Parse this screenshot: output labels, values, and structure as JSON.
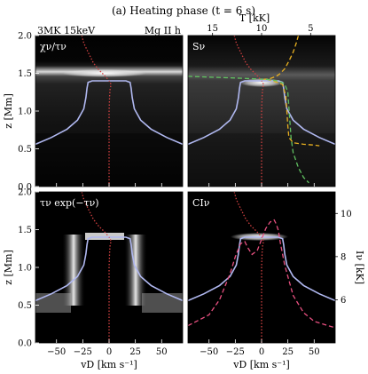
{
  "figure": {
    "title": "(a) Heating phase (t = 6 s)",
    "left_note": "3MK 15keV",
    "right_note": "Mg II h"
  },
  "chart_data": [
    {
      "type": "heatmap",
      "panel": "top-left",
      "label": "χν/τν",
      "xlabel": "",
      "ylabel": "z [Mm]",
      "xlim": [
        -70,
        70
      ],
      "ylim": [
        0.0,
        2.0
      ],
      "x_ticks": [
        -50,
        -25,
        0,
        25,
        50
      ],
      "y_ticks": [
        0.0,
        0.5,
        1.0,
        1.5,
        2.0
      ],
      "series": [
        {
          "name": "tau_unity",
          "color": "#b0b8f0",
          "x": [
            -70,
            -55,
            -40,
            -30,
            -24,
            -22,
            -21,
            -20,
            -16,
            0,
            16,
            20,
            21,
            22,
            24,
            30,
            40,
            55,
            70
          ],
          "y": [
            0.56,
            0.65,
            0.76,
            0.88,
            1.03,
            1.18,
            1.3,
            1.38,
            1.4,
            1.4,
            1.4,
            1.38,
            1.3,
            1.18,
            1.03,
            0.88,
            0.76,
            0.65,
            0.56
          ]
        },
        {
          "name": "velocity",
          "color": "#d04040",
          "style": "dotted",
          "x": [
            0,
            0,
            0,
            0.5,
            1,
            2,
            0
          ],
          "y": [
            0.0,
            0.5,
            1.0,
            1.2,
            1.3,
            1.35,
            1.4
          ]
        },
        {
          "name": "temperature",
          "color": "#d04040",
          "style": "dotted",
          "x": [
            -26,
            -24,
            -20,
            -15,
            -10,
            -5,
            -1
          ],
          "y": [
            2.0,
            1.9,
            1.78,
            1.64,
            1.55,
            1.48,
            1.42
          ]
        }
      ],
      "bright_band": {
        "z": [
          1.38,
          1.46
        ],
        "x": [
          -40,
          25
        ]
      }
    },
    {
      "type": "heatmap",
      "panel": "top-right",
      "label": "Sν",
      "xlabel": "",
      "ylabel": "",
      "top_axis_label": "T [kK]",
      "top_ticks": [
        15,
        10,
        5
      ],
      "xlim": [
        -70,
        70
      ],
      "ylim": [
        0.0,
        2.0
      ],
      "x_ticks": [
        -50,
        -25,
        0,
        25,
        50
      ],
      "series": [
        {
          "name": "tau_unity",
          "color": "#b0b8f0",
          "x": [
            -70,
            -55,
            -40,
            -30,
            -24,
            -22,
            -21,
            -20,
            -16,
            0,
            16,
            20,
            21,
            22,
            24,
            30,
            40,
            55,
            70
          ],
          "y": [
            0.56,
            0.65,
            0.76,
            0.88,
            1.03,
            1.18,
            1.3,
            1.38,
            1.4,
            1.4,
            1.4,
            1.38,
            1.3,
            1.18,
            1.03,
            0.88,
            0.76,
            0.65,
            0.56
          ]
        },
        {
          "name": "source_function_temperature",
          "color": "#e8b020",
          "style": "dashed",
          "x": [
            35,
            33,
            30,
            26,
            22,
            18,
            14,
            8,
            2
          ],
          "y": [
            2.0,
            1.9,
            1.78,
            1.66,
            1.56,
            1.5,
            1.46,
            1.43,
            1.42
          ]
        },
        {
          "name": "electron_temperature",
          "color": "#e8b020",
          "style": "dashed",
          "x": [
            5,
            10,
            15,
            20,
            23,
            24,
            25,
            26,
            30,
            40,
            50,
            55
          ],
          "y": [
            1.42,
            1.4,
            1.38,
            1.35,
            1.2,
            1.0,
            0.8,
            0.65,
            0.58,
            0.56,
            0.55,
            0.54
          ]
        },
        {
          "name": "ionization_temperature",
          "color": "#60c060",
          "style": "dashed",
          "x": [
            -70,
            -50,
            -30,
            -10,
            5,
            15,
            22,
            25,
            26,
            27,
            28,
            30,
            35,
            40,
            45
          ],
          "y": [
            1.46,
            1.45,
            1.44,
            1.43,
            1.42,
            1.4,
            1.36,
            1.25,
            1.05,
            0.85,
            0.65,
            0.45,
            0.25,
            0.12,
            0.05
          ]
        },
        {
          "name": "velocity",
          "color": "#d04040",
          "style": "dotted",
          "x": [
            0,
            0,
            0,
            0.5,
            1,
            2,
            0
          ],
          "y": [
            0.0,
            0.5,
            1.0,
            1.2,
            1.3,
            1.35,
            1.4
          ]
        },
        {
          "name": "temperature",
          "color": "#d04040",
          "style": "dotted",
          "x": [
            -26,
            -24,
            -20,
            -15,
            -10,
            -5,
            -1
          ],
          "y": [
            2.0,
            1.9,
            1.78,
            1.64,
            1.55,
            1.48,
            1.42
          ]
        }
      ],
      "bright_band": {
        "z": [
          1.38,
          1.44
        ],
        "x": [
          -10,
          20
        ]
      }
    },
    {
      "type": "heatmap",
      "panel": "bottom-left",
      "label": "τν exp(−τν)",
      "xlabel": "vD [km s⁻¹]",
      "ylabel": "z [Mm]",
      "xlim": [
        -70,
        70
      ],
      "ylim": [
        0.0,
        2.0
      ],
      "x_ticks": [
        -50,
        -25,
        0,
        25,
        50
      ],
      "y_ticks": [
        0.0,
        0.5,
        1.0,
        1.5,
        2.0
      ],
      "series": [
        {
          "name": "tau_unity",
          "color": "#b0b8f0",
          "x": [
            -70,
            -55,
            -40,
            -30,
            -24,
            -22,
            -21,
            -20,
            -16,
            0,
            16,
            20,
            21,
            22,
            24,
            30,
            40,
            55,
            70
          ],
          "y": [
            0.56,
            0.65,
            0.76,
            0.88,
            1.03,
            1.18,
            1.3,
            1.38,
            1.4,
            1.4,
            1.4,
            1.38,
            1.3,
            1.18,
            1.03,
            0.88,
            0.76,
            0.65,
            0.56
          ]
        },
        {
          "name": "velocity",
          "color": "#d04040",
          "style": "dotted",
          "x": [
            0,
            0,
            0,
            0.5,
            1,
            2,
            0
          ],
          "y": [
            0.0,
            0.5,
            1.0,
            1.2,
            1.3,
            1.35,
            1.4
          ]
        },
        {
          "name": "temperature",
          "color": "#d04040",
          "style": "dotted",
          "x": [
            -26,
            -24,
            -20,
            -15,
            -10,
            -5,
            -1
          ],
          "y": [
            2.0,
            1.9,
            1.78,
            1.64,
            1.55,
            1.48,
            1.42
          ]
        }
      ],
      "bright_band": {
        "z": [
          0.5,
          1.45
        ],
        "x": [
          -35,
          35
        ]
      }
    },
    {
      "type": "heatmap",
      "panel": "bottom-right",
      "label": "CIν",
      "xlabel": "vD [km s⁻¹]",
      "ylabel": "",
      "right_axis_label": "Iν [kK]",
      "right_ticks": [
        6,
        8,
        10
      ],
      "xlim": [
        -70,
        70
      ],
      "ylim": [
        0.0,
        2.0
      ],
      "x_ticks": [
        -50,
        -25,
        0,
        25,
        50
      ],
      "series": [
        {
          "name": "tau_unity",
          "color": "#b0b8f0",
          "x": [
            -70,
            -55,
            -40,
            -30,
            -24,
            -22,
            -21,
            -20,
            -16,
            0,
            16,
            20,
            21,
            22,
            24,
            30,
            40,
            55,
            70
          ],
          "y": [
            0.56,
            0.65,
            0.76,
            0.88,
            1.03,
            1.18,
            1.3,
            1.38,
            1.4,
            1.4,
            1.4,
            1.38,
            1.3,
            1.18,
            1.03,
            0.88,
            0.76,
            0.65,
            0.56
          ]
        },
        {
          "name": "intensity_profile",
          "color": "#e85080",
          "style": "dashed",
          "x": [
            -70,
            -50,
            -40,
            -30,
            -25,
            -20,
            -16,
            -13,
            -9,
            -4,
            0,
            4,
            8,
            12,
            14,
            16,
            18,
            22,
            30,
            40,
            50,
            70
          ],
          "x_units": "km/s",
          "I_kK": [
            4.8,
            5.3,
            6.0,
            7.2,
            8.0,
            8.6,
            8.7,
            8.4,
            8.1,
            8.3,
            8.8,
            9.3,
            9.6,
            9.7,
            9.5,
            9.2,
            8.6,
            7.6,
            6.2,
            5.4,
            5.0,
            4.7
          ]
        },
        {
          "name": "velocity",
          "color": "#d04040",
          "style": "dotted",
          "x": [
            0,
            0,
            0,
            0.5,
            1,
            2,
            0
          ],
          "y": [
            0.0,
            0.5,
            1.0,
            1.2,
            1.3,
            1.35,
            1.4
          ]
        },
        {
          "name": "temperature",
          "color": "#d04040",
          "style": "dotted",
          "x": [
            -26,
            -24,
            -20,
            -15,
            -10,
            -5,
            -1
          ],
          "y": [
            2.0,
            1.9,
            1.78,
            1.64,
            1.55,
            1.48,
            1.42
          ]
        }
      ],
      "bright_band": {
        "z": [
          1.36,
          1.46
        ],
        "x": [
          -20,
          25
        ]
      }
    }
  ]
}
